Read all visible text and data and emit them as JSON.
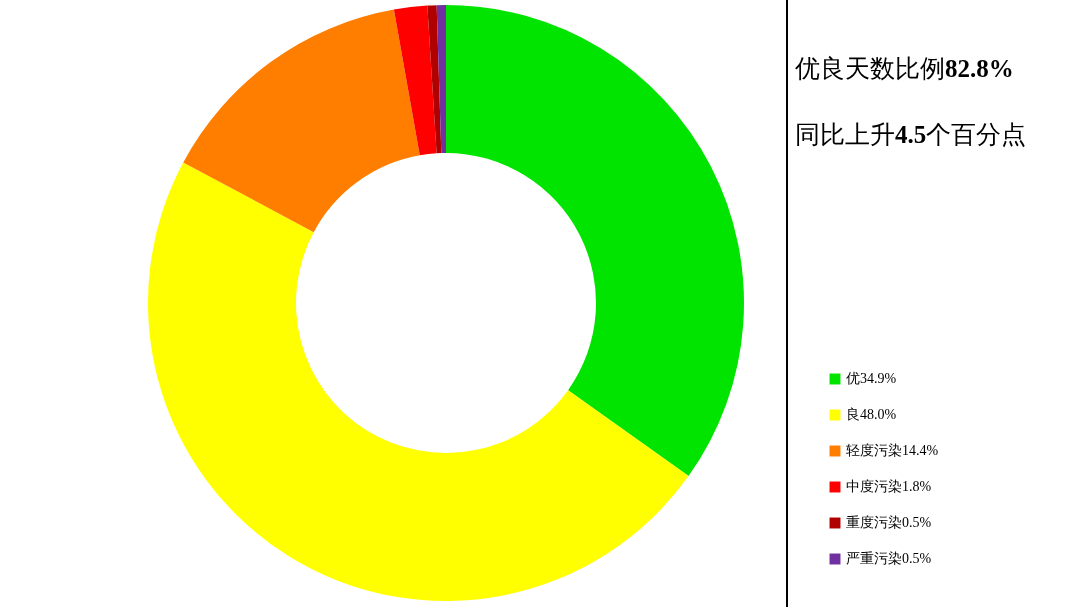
{
  "chart_data": {
    "type": "donut",
    "categories": [
      "优34.9%",
      "良48.0%",
      "轻度污染14.4%",
      "中度污染1.8%",
      "重度污染0.5%",
      "严重污染0.5%"
    ],
    "values": [
      34.9,
      48.0,
      14.4,
      1.8,
      0.5,
      0.5
    ],
    "colors": [
      "#00e400",
      "#ffff00",
      "#ff7e00",
      "#ff0000",
      "#b00000",
      "#7030a0"
    ],
    "legend": "bottom right",
    "annotations": [
      "优良天数比例82.8%",
      "同比上升4.5个百分点"
    ]
  }
}
